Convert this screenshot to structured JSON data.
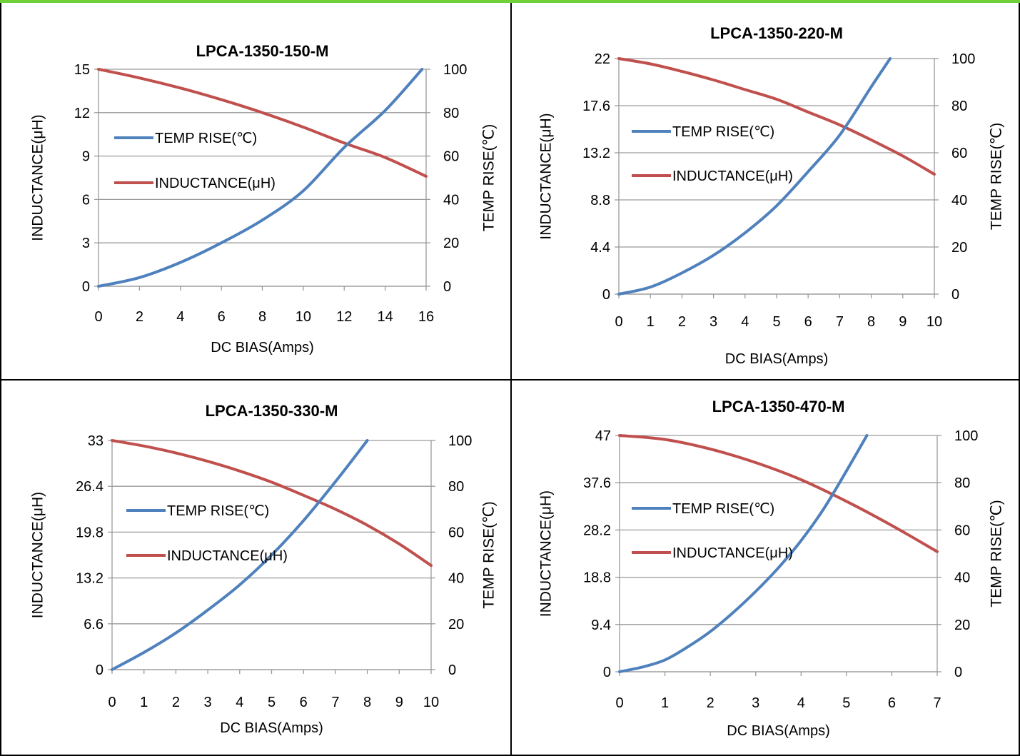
{
  "colors": {
    "temp": "#4f81bd",
    "inductance": "#c0504d",
    "grid": "#9a9a9a",
    "border": "#000000",
    "top_bar": "#6fd13a"
  },
  "chart_data": [
    {
      "type": "line",
      "title": "LPCA-1350-150-M",
      "xlabel": "DC  BIAS(Amps)",
      "ylabel_left": "INDUCTANCE(μH)",
      "ylabel_right": "TEMP RISE(℃)",
      "xlim": [
        0,
        16
      ],
      "xticks": [
        "0",
        "2",
        "4",
        "6",
        "8",
        "10",
        "12",
        "14",
        "16"
      ],
      "ylim_left": [
        0,
        15
      ],
      "yticks_left": [
        "0",
        "3",
        "6",
        "9",
        "12",
        "15"
      ],
      "ylim_right": [
        0,
        100
      ],
      "yticks_right": [
        "0",
        "20",
        "40",
        "60",
        "80",
        "100"
      ],
      "grid": true,
      "legend": "left, inside plot",
      "series": [
        {
          "name": "TEMP RISE(℃)",
          "axis": "right",
          "x": [
            0,
            2,
            4,
            6,
            8,
            10,
            12,
            14,
            15.8
          ],
          "y": [
            0,
            4,
            11,
            20,
            30.5,
            44,
            64,
            81,
            100
          ]
        },
        {
          "name": "INDUCTANCE(μH)",
          "axis": "left",
          "x": [
            0,
            2,
            4,
            6,
            8,
            10,
            12,
            14,
            16
          ],
          "y": [
            15,
            14.4,
            13.7,
            12.9,
            12,
            11,
            9.9,
            8.9,
            7.6
          ]
        }
      ]
    },
    {
      "type": "line",
      "title": "LPCA-1350-220-M",
      "xlabel": "DC  BIAS(Amps)",
      "ylabel_left": "INDUCTANCE(μH)",
      "ylabel_right": "TEMP RISE(℃)",
      "xlim": [
        0,
        10
      ],
      "xticks": [
        "0",
        "1",
        "2",
        "3",
        "4",
        "5",
        "6",
        "7",
        "8",
        "9",
        "10"
      ],
      "ylim_left": [
        0,
        22
      ],
      "yticks_left": [
        "0",
        "4.4",
        "8.8",
        "13.2",
        "17.6",
        "22"
      ],
      "ylim_right": [
        0,
        100
      ],
      "yticks_right": [
        "0",
        "20",
        "40",
        "60",
        "80",
        "100"
      ],
      "grid": true,
      "legend": "left, inside plot",
      "series": [
        {
          "name": "TEMP RISE(℃)",
          "axis": "right",
          "x": [
            0,
            1,
            2,
            3,
            4,
            5,
            6,
            7,
            8,
            8.6
          ],
          "y": [
            0,
            3,
            9,
            16.5,
            26,
            37.5,
            52,
            67.5,
            88,
            100
          ]
        },
        {
          "name": "INDUCTANCE(μH)",
          "axis": "left",
          "x": [
            0,
            1,
            2,
            3,
            4,
            5,
            6,
            7,
            8,
            9,
            10
          ],
          "y": [
            22,
            21.5,
            20.8,
            20,
            19.1,
            18.2,
            17,
            15.8,
            14.4,
            12.9,
            11.2
          ]
        }
      ]
    },
    {
      "type": "line",
      "title": "LPCA-1350-330-M",
      "xlabel": "DC  BIAS(Amps)",
      "ylabel_left": "INDUCTANCE(μH)",
      "ylabel_right": "TEMP RISE(℃)",
      "xlim": [
        0,
        10
      ],
      "xticks": [
        "0",
        "1",
        "2",
        "3",
        "4",
        "5",
        "6",
        "7",
        "8",
        "9",
        "10"
      ],
      "ylim_left": [
        0,
        33
      ],
      "yticks_left": [
        "0",
        "6.6",
        "13.2",
        "19.8",
        "26.4",
        "33"
      ],
      "ylim_right": [
        0,
        100
      ],
      "yticks_right": [
        "0",
        "20",
        "40",
        "60",
        "80",
        "100"
      ],
      "grid": true,
      "legend": "left, inside plot",
      "series": [
        {
          "name": "TEMP RISE(℃)",
          "axis": "right",
          "x": [
            0,
            1,
            2,
            3,
            4,
            5,
            6,
            7,
            8
          ],
          "y": [
            0,
            7.5,
            16,
            26,
            37,
            50,
            65,
            82,
            100
          ]
        },
        {
          "name": "INDUCTANCE(μH)",
          "axis": "left",
          "x": [
            0,
            1,
            2,
            3,
            4,
            5,
            6,
            7,
            8,
            9,
            10
          ],
          "y": [
            33,
            32.2,
            31.2,
            30,
            28.6,
            27,
            25.1,
            23.1,
            20.8,
            18.1,
            15
          ]
        }
      ]
    },
    {
      "type": "line",
      "title": "LPCA-1350-470-M",
      "xlabel": "DC  BIAS(Amps)",
      "ylabel_left": "INDUCTANCE(μH)",
      "ylabel_right": "TEMP RISE(℃)",
      "xlim": [
        0,
        7
      ],
      "xticks": [
        "0",
        "1",
        "2",
        "3",
        "4",
        "5",
        "6",
        "7"
      ],
      "ylim_left": [
        0,
        47
      ],
      "yticks_left": [
        "0",
        "9.4",
        "18.8",
        "28.2",
        "37.6",
        "47"
      ],
      "ylim_right": [
        0,
        100
      ],
      "yticks_right": [
        "0",
        "20",
        "40",
        "60",
        "80",
        "100"
      ],
      "grid": true,
      "legend": "left, inside plot",
      "series": [
        {
          "name": "TEMP RISE(℃)",
          "axis": "right",
          "x": [
            0,
            0.5,
            1,
            1.5,
            2,
            2.5,
            3,
            3.5,
            4,
            4.5,
            5,
            5.45
          ],
          "y": [
            0,
            2,
            5,
            10.5,
            17,
            25,
            34,
            44,
            55.5,
            69,
            85,
            100
          ]
        },
        {
          "name": "INDUCTANCE(μH)",
          "axis": "left",
          "x": [
            0,
            1,
            2,
            3,
            4,
            5,
            6,
            7
          ],
          "y": [
            47,
            46.2,
            44.3,
            41.6,
            38.2,
            33.9,
            29.1,
            23.9
          ]
        }
      ]
    }
  ]
}
